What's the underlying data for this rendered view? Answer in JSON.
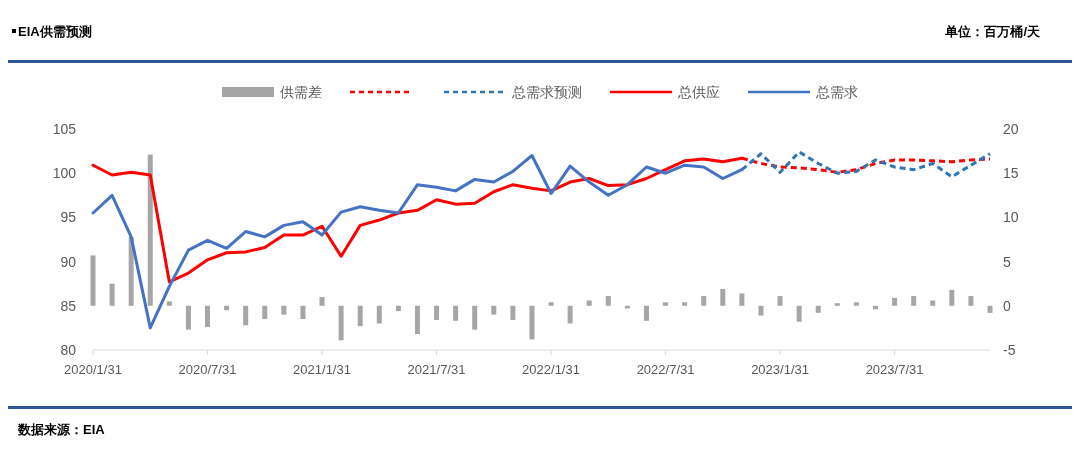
{
  "chart_data": {
    "type": "line",
    "title": "EIA供需预测",
    "annotations": [
      "单位：百万桶/天",
      "数据来源：EIA"
    ],
    "x": [
      "2020-01",
      "2020-02",
      "2020-03",
      "2020-04",
      "2020-05",
      "2020-06",
      "2020-07",
      "2020-08",
      "2020-09",
      "2020-10",
      "2020-11",
      "2020-12",
      "2021-01",
      "2021-02",
      "2021-03",
      "2021-04",
      "2021-05",
      "2021-06",
      "2021-07",
      "2021-08",
      "2021-09",
      "2021-10",
      "2021-11",
      "2021-12",
      "2022-01",
      "2022-02",
      "2022-03",
      "2022-04",
      "2022-05",
      "2022-06",
      "2022-07",
      "2022-08",
      "2022-09",
      "2022-10",
      "2022-11",
      "2022-12",
      "2023-01",
      "2023-02",
      "2023-03",
      "2023-04",
      "2023-05",
      "2023-06",
      "2023-07",
      "2023-08",
      "2023-09",
      "2023-10",
      "2023-11",
      "2023-12"
    ],
    "xlim": [
      "2020-01",
      "2023-12"
    ],
    "xticks": [
      {
        "value": "2020-01",
        "label": "2020/1/31"
      },
      {
        "value": "2020-07",
        "label": "2020/7/31"
      },
      {
        "value": "2021-01",
        "label": "2021/1/31"
      },
      {
        "value": "2021-07",
        "label": "2021/7/31"
      },
      {
        "value": "2022-01",
        "label": "2022/1/31"
      },
      {
        "value": "2022-07",
        "label": "2022/7/31"
      },
      {
        "value": "2023-01",
        "label": "2023/1/31"
      },
      {
        "value": "2023-07",
        "label": "2023/7/31"
      }
    ],
    "ylim": [
      80,
      105
    ],
    "yticks": [
      80,
      85,
      90,
      95,
      100,
      105
    ],
    "y2lim": [
      -5,
      20
    ],
    "y2ticks": [
      -5,
      0,
      5,
      10,
      15,
      20
    ],
    "legend": "top",
    "grid": false,
    "marker": "none",
    "series": [
      {
        "name": "供需差",
        "type": "bar",
        "axis": "y2",
        "color": "#a6a6a6",
        "values": [
          5.7,
          2.5,
          7.8,
          17.1,
          0.5,
          -2.7,
          -2.4,
          -0.5,
          -2.2,
          -1.5,
          -1.0,
          -1.5,
          1.0,
          -3.9,
          -2.3,
          -2.0,
          -0.6,
          -3.2,
          -1.6,
          -1.7,
          -2.7,
          -1.0,
          -1.6,
          -3.8,
          0.4,
          -2.0,
          0.6,
          1.1,
          -0.3,
          -1.7,
          0.4,
          0.4,
          1.1,
          1.9,
          1.4,
          -1.1,
          1.1,
          -1.8,
          -0.8,
          0.3,
          0.4,
          -0.4,
          0.9,
          1.1,
          0.6,
          1.8,
          1.1,
          -0.8
        ]
      },
      {
        "line_style": "dashed",
        "color": "#ff0000",
        "values": [
          null,
          null,
          null,
          null,
          null,
          null,
          null,
          null,
          null,
          null,
          null,
          null,
          null,
          null,
          null,
          null,
          null,
          null,
          null,
          null,
          null,
          null,
          null,
          null,
          null,
          null,
          null,
          null,
          null,
          null,
          null,
          null,
          null,
          null,
          101.7,
          101.1,
          100.7,
          100.6,
          100.4,
          100.1,
          100.4,
          101.1,
          101.5,
          101.5,
          101.4,
          101.3,
          101.5,
          101.6
        ]
      },
      {
        "name": "总需求预测",
        "line_style": "dashed",
        "color": "#2e75b6",
        "values": [
          null,
          null,
          null,
          null,
          null,
          null,
          null,
          null,
          null,
          null,
          null,
          null,
          null,
          null,
          null,
          null,
          null,
          null,
          null,
          null,
          null,
          null,
          null,
          null,
          null,
          null,
          null,
          null,
          null,
          null,
          null,
          null,
          null,
          null,
          100.4,
          102.2,
          100.1,
          102.4,
          101.1,
          100.0,
          100.2,
          101.5,
          100.7,
          100.4,
          101.1,
          99.6,
          100.9,
          102.2
        ]
      },
      {
        "name": "总供应",
        "line_style": "solid",
        "color": "#ff0000",
        "values": [
          100.9,
          99.8,
          100.1,
          99.8,
          87.7,
          88.7,
          90.2,
          91.0,
          91.1,
          91.6,
          93.0,
          93.0,
          94.0,
          90.6,
          94.1,
          94.7,
          95.5,
          95.8,
          97.0,
          96.5,
          96.6,
          97.9,
          98.7,
          98.3,
          98.0,
          99.0,
          99.4,
          98.6,
          98.7,
          99.4,
          100.4,
          101.4,
          101.6,
          101.3,
          101.7,
          null,
          null,
          null,
          null,
          null,
          null,
          null,
          null,
          null,
          null,
          null,
          null,
          null
        ]
      },
      {
        "name": "总需求",
        "line_style": "solid",
        "color": "#4472c4",
        "values": [
          95.5,
          97.5,
          92.8,
          82.5,
          87.2,
          91.3,
          92.4,
          91.5,
          93.4,
          92.8,
          94.1,
          94.5,
          93.0,
          95.6,
          96.2,
          95.8,
          95.5,
          98.7,
          98.4,
          98.0,
          99.3,
          99.0,
          100.2,
          102.0,
          97.7,
          100.8,
          99.0,
          97.5,
          98.7,
          100.7,
          100.0,
          100.9,
          100.7,
          99.4,
          100.4,
          null,
          null,
          null,
          null,
          null,
          null,
          null,
          null,
          null,
          null,
          null,
          null,
          null
        ]
      }
    ]
  }
}
